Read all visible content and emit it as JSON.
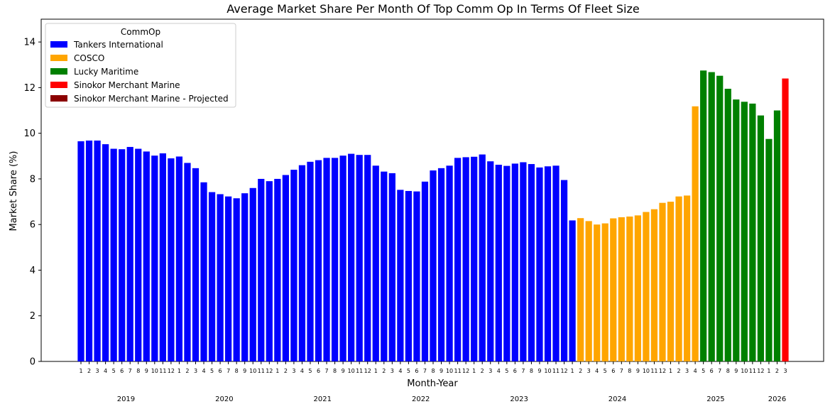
{
  "chart_data": {
    "type": "bar",
    "title": "Average Market Share Per Month Of Top Comm Op In Terms Of Fleet Size",
    "xlabel": "Month-Year",
    "ylabel": "Market Share (%)",
    "ylim": [
      0,
      15
    ],
    "yticks": [
      0,
      2,
      4,
      6,
      8,
      10,
      12,
      14
    ],
    "legend": {
      "title": "CommOp",
      "position": "top-left",
      "entries": [
        {
          "name": "Tankers International",
          "color": "#0000ff"
        },
        {
          "name": "COSCO",
          "color": "#ffa500"
        },
        {
          "name": "Lucky Maritime",
          "color": "#008000"
        },
        {
          "name": "Sinokor Merchant Marine",
          "color": "#ff0000"
        },
        {
          "name": "Sinokor Merchant Marine - Projected",
          "color": "#8b0000"
        }
      ]
    },
    "years": [
      {
        "label": "2019",
        "first_index": 0,
        "last_index": 11
      },
      {
        "label": "2020",
        "first_index": 12,
        "last_index": 23
      },
      {
        "label": "2021",
        "first_index": 24,
        "last_index": 35
      },
      {
        "label": "2022",
        "first_index": 36,
        "last_index": 47
      },
      {
        "label": "2023",
        "first_index": 48,
        "last_index": 59
      },
      {
        "label": "2024",
        "first_index": 60,
        "last_index": 71
      },
      {
        "label": "2025",
        "first_index": 72,
        "last_index": 83
      },
      {
        "label": "2026",
        "first_index": 84,
        "last_index": 86
      }
    ],
    "categories": [
      "1",
      "2",
      "3",
      "4",
      "5",
      "6",
      "7",
      "8",
      "9",
      "10",
      "11",
      "12",
      "1",
      "2",
      "3",
      "4",
      "5",
      "6",
      "7",
      "8",
      "9",
      "10",
      "11",
      "12",
      "1",
      "2",
      "3",
      "4",
      "5",
      "6",
      "7",
      "8",
      "9",
      "10",
      "11",
      "12",
      "1",
      "2",
      "3",
      "4",
      "5",
      "6",
      "7",
      "8",
      "9",
      "10",
      "11",
      "12",
      "1",
      "2",
      "3",
      "4",
      "5",
      "6",
      "7",
      "8",
      "9",
      "10",
      "11",
      "12",
      "1",
      "2",
      "3",
      "4",
      "5",
      "6",
      "7",
      "8",
      "9",
      "10",
      "11",
      "12",
      "1",
      "2",
      "3",
      "4",
      "5",
      "6",
      "7",
      "8",
      "9",
      "10",
      "11",
      "12",
      "1",
      "2",
      "3"
    ],
    "values": [
      9.65,
      9.68,
      9.68,
      9.52,
      9.32,
      9.3,
      9.4,
      9.32,
      9.2,
      9.02,
      9.12,
      8.9,
      8.98,
      8.7,
      8.47,
      7.85,
      7.42,
      7.33,
      7.23,
      7.15,
      7.37,
      7.6,
      8.0,
      7.9,
      8.0,
      8.17,
      8.4,
      8.6,
      8.75,
      8.82,
      8.92,
      8.92,
      9.02,
      9.1,
      9.05,
      9.05,
      8.58,
      8.32,
      8.25,
      7.52,
      7.47,
      7.45,
      7.88,
      8.37,
      8.47,
      8.58,
      8.92,
      8.95,
      8.97,
      9.07,
      8.77,
      8.62,
      8.57,
      8.67,
      8.73,
      8.65,
      8.5,
      8.55,
      8.58,
      7.95,
      6.18,
      6.28,
      6.15,
      6.0,
      6.05,
      6.27,
      6.32,
      6.35,
      6.4,
      6.55,
      6.67,
      6.95,
      7.0,
      7.23,
      7.27,
      11.18,
      12.75,
      12.68,
      12.52,
      11.95,
      11.48,
      11.38,
      11.3,
      10.78,
      9.75,
      11.0,
      12.4
    ],
    "series_index": [
      0,
      0,
      0,
      0,
      0,
      0,
      0,
      0,
      0,
      0,
      0,
      0,
      0,
      0,
      0,
      0,
      0,
      0,
      0,
      0,
      0,
      0,
      0,
      0,
      0,
      0,
      0,
      0,
      0,
      0,
      0,
      0,
      0,
      0,
      0,
      0,
      0,
      0,
      0,
      0,
      0,
      0,
      0,
      0,
      0,
      0,
      0,
      0,
      0,
      0,
      0,
      0,
      0,
      0,
      0,
      0,
      0,
      0,
      0,
      0,
      0,
      1,
      1,
      1,
      1,
      1,
      1,
      1,
      1,
      1,
      1,
      1,
      1,
      1,
      1,
      1,
      2,
      2,
      2,
      2,
      2,
      2,
      2,
      2,
      2,
      2,
      3,
      4
    ]
  }
}
